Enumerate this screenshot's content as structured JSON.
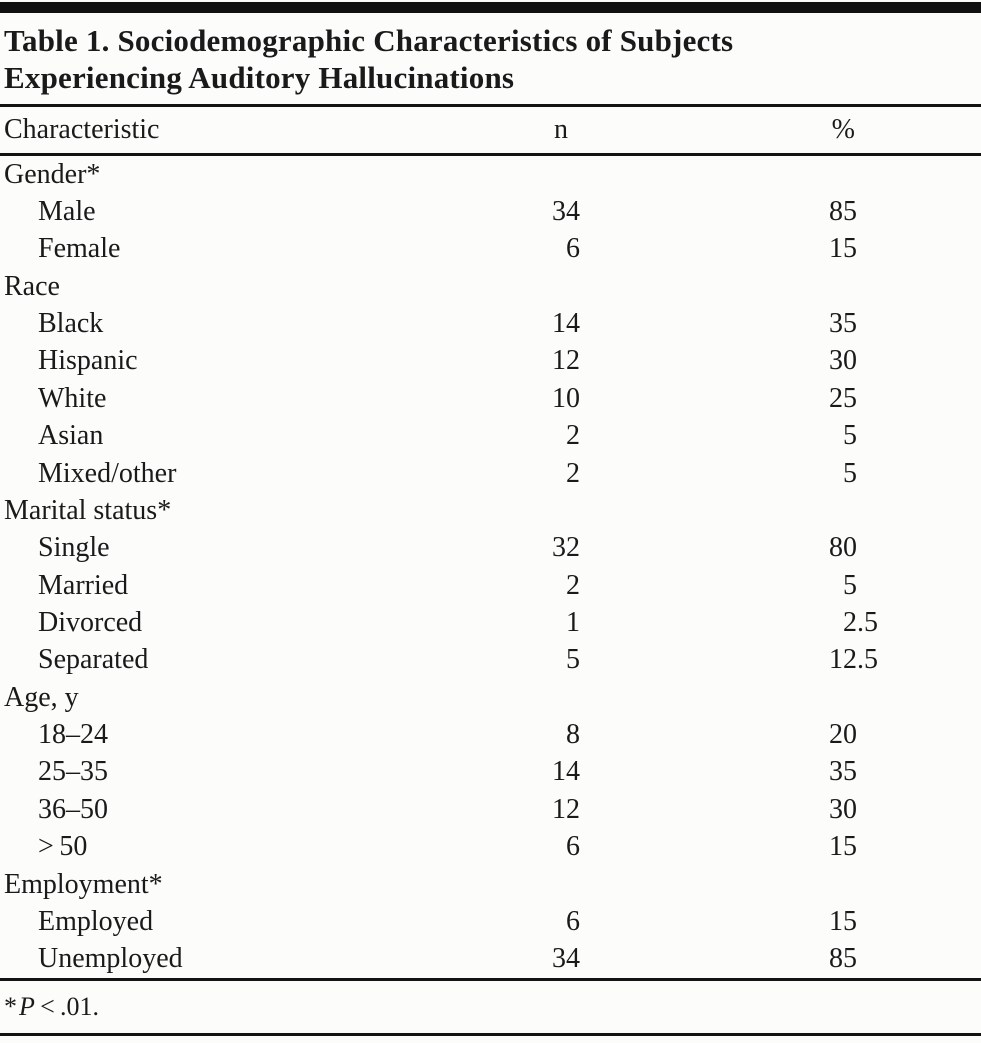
{
  "table": {
    "title": {
      "line1": "Table 1. Sociodemographic Characteristics of Subjects",
      "line2": "Experiencing Auditory Hallucinations"
    },
    "columns": {
      "characteristic": "Characteristic",
      "n": "n",
      "pct": "%"
    },
    "rows": [
      {
        "label": "Gender*",
        "indent": false,
        "n": "",
        "pct": ""
      },
      {
        "label": "Male",
        "indent": true,
        "n": "34",
        "pct": "85"
      },
      {
        "label": "Female",
        "indent": true,
        "n": "6",
        "pct": "15"
      },
      {
        "label": "Race",
        "indent": false,
        "n": "",
        "pct": ""
      },
      {
        "label": "Black",
        "indent": true,
        "n": "14",
        "pct": "35"
      },
      {
        "label": "Hispanic",
        "indent": true,
        "n": "12",
        "pct": "30"
      },
      {
        "label": "White",
        "indent": true,
        "n": "10",
        "pct": "25"
      },
      {
        "label": "Asian",
        "indent": true,
        "n": "2",
        "pct": "5"
      },
      {
        "label": "Mixed/other",
        "indent": true,
        "n": "2",
        "pct": "5"
      },
      {
        "label": "Marital status*",
        "indent": false,
        "n": "",
        "pct": ""
      },
      {
        "label": "Single",
        "indent": true,
        "n": "32",
        "pct": "80"
      },
      {
        "label": "Married",
        "indent": true,
        "n": "2",
        "pct": "5"
      },
      {
        "label": "Divorced",
        "indent": true,
        "n": "1",
        "pct": "2.5"
      },
      {
        "label": "Separated",
        "indent": true,
        "n": "5",
        "pct": "12.5"
      },
      {
        "label": "Age, y",
        "indent": false,
        "n": "",
        "pct": ""
      },
      {
        "label": "18–24",
        "indent": true,
        "n": "8",
        "pct": "20"
      },
      {
        "label": "25–35",
        "indent": true,
        "n": "14",
        "pct": "35"
      },
      {
        "label": "36–50",
        "indent": true,
        "n": "12",
        "pct": "30"
      },
      {
        "label": "> 50",
        "indent": true,
        "n": "6",
        "pct": "15"
      },
      {
        "label": "Employment*",
        "indent": false,
        "n": "",
        "pct": ""
      },
      {
        "label": "Employed",
        "indent": true,
        "n": "6",
        "pct": "15"
      },
      {
        "label": "Unemployed",
        "indent": true,
        "n": "34",
        "pct": "85"
      }
    ],
    "footnote": {
      "marker": "*",
      "p": "P",
      "rest": " < .01."
    }
  }
}
